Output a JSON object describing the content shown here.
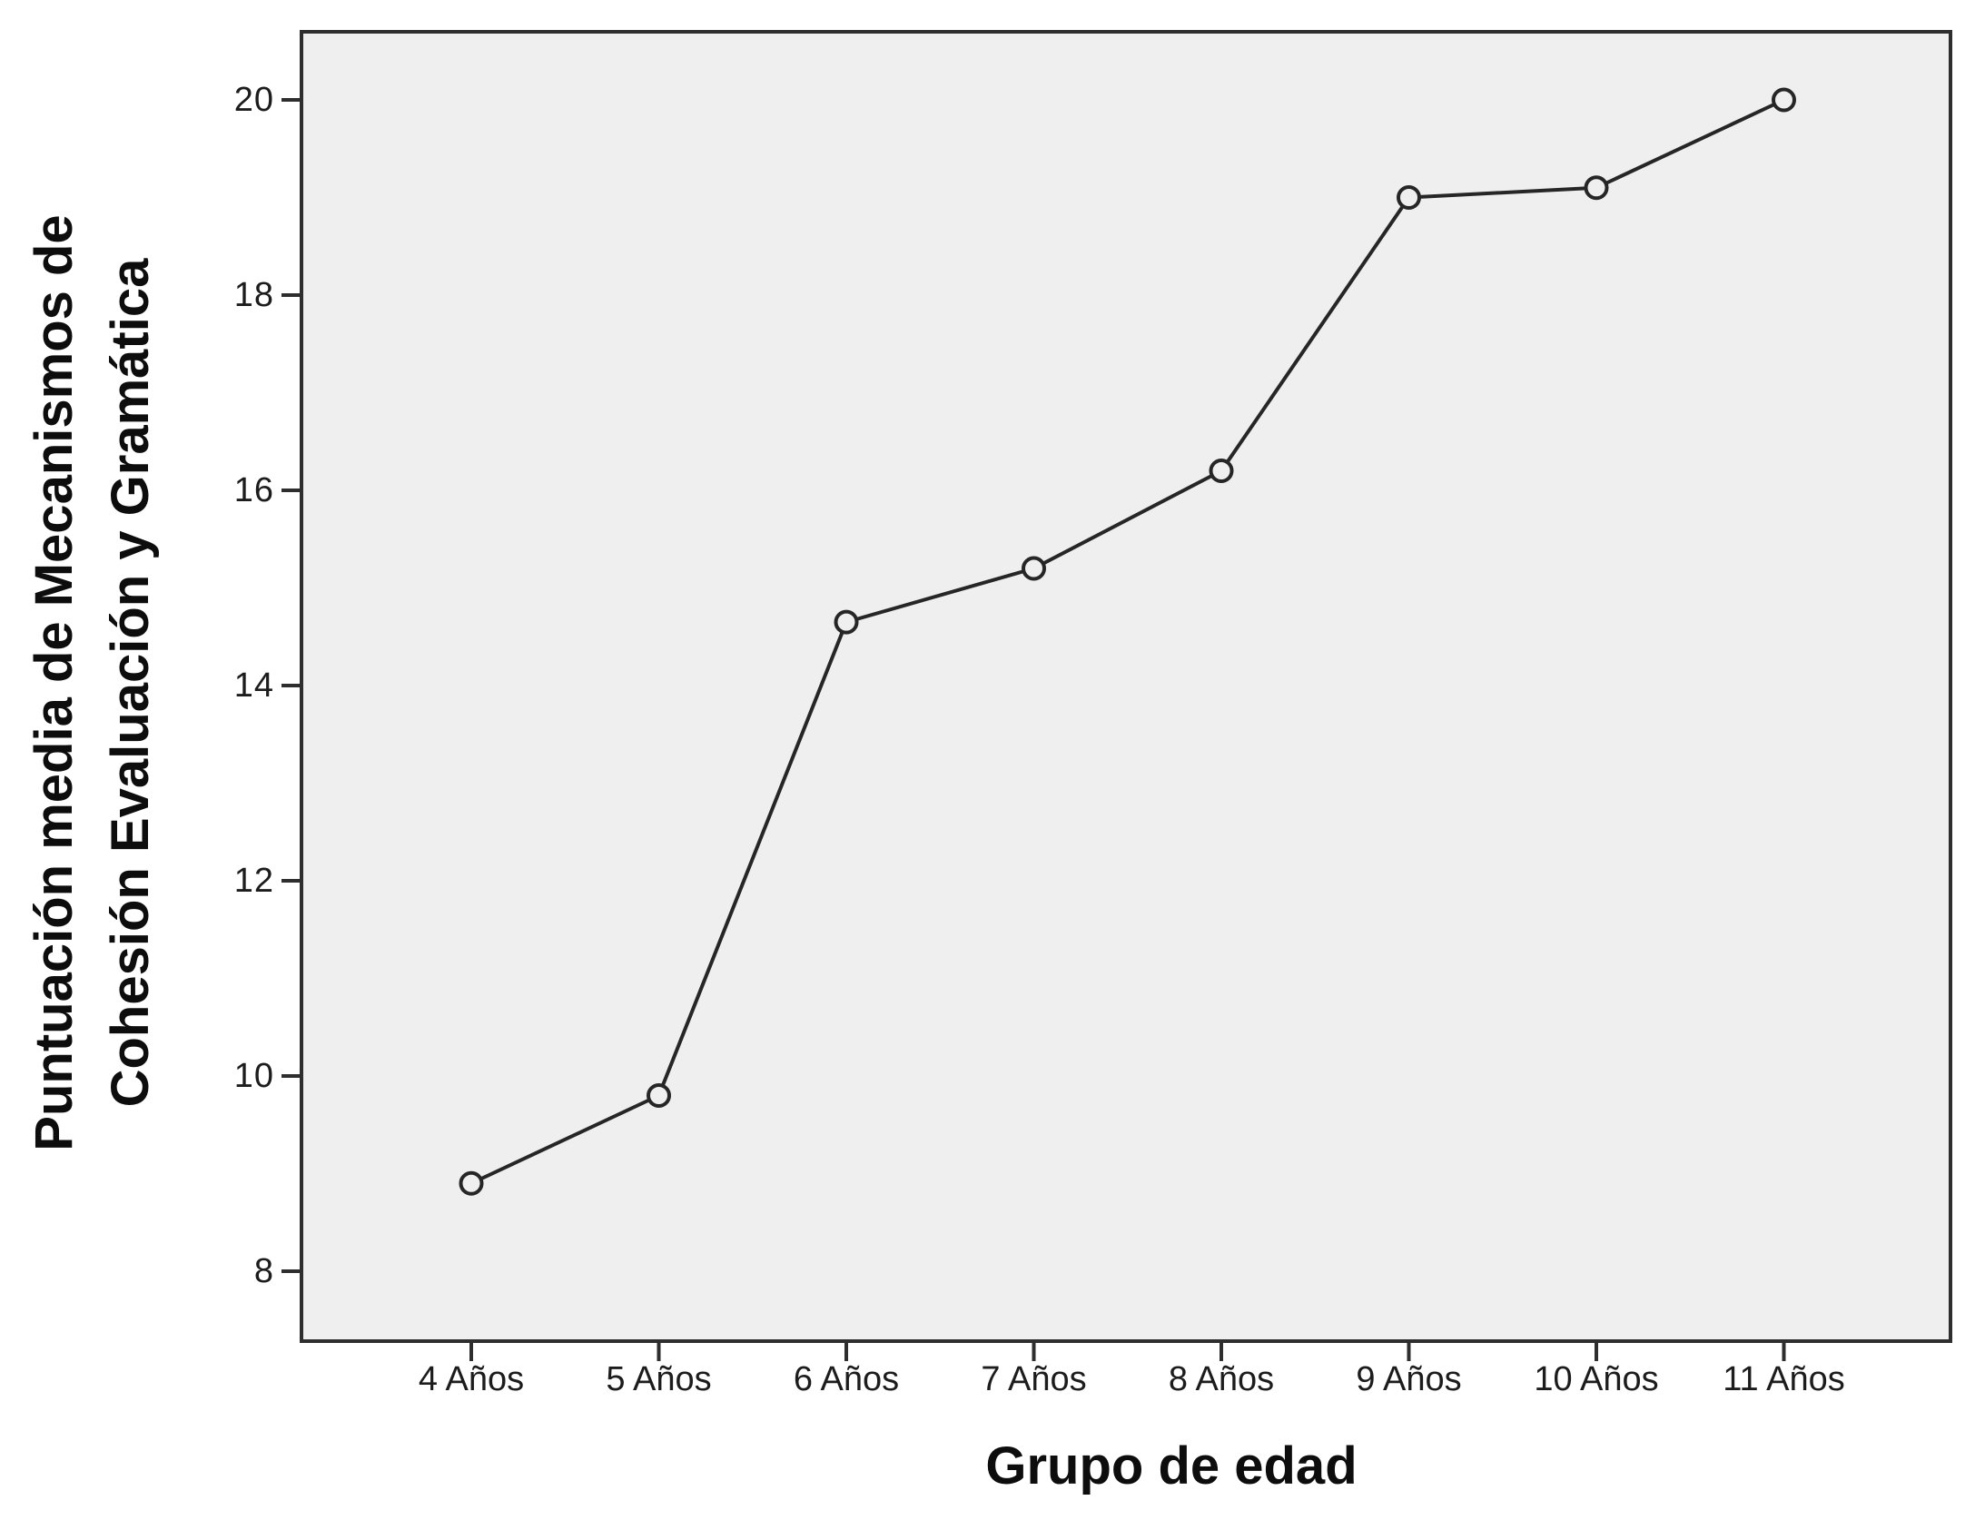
{
  "chart_data": {
    "type": "line",
    "title": "",
    "xlabel": "Grupo de edad",
    "ylabel": "Puntuación media de Mecanismos de Cohesión Evaluación y Gramática",
    "ylabel_lines": [
      "Puntuación media de Mecanismos de",
      "Cohesión Evaluación y Gramática"
    ],
    "categories": [
      "4 Años",
      "5 Años",
      "6 Años",
      "7 Años",
      "8 Años",
      "9 Años",
      "10 Años",
      "11 Años"
    ],
    "values": [
      8.9,
      9.8,
      14.65,
      15.2,
      16.2,
      19.0,
      19.1,
      20.0
    ],
    "yticks": [
      20,
      18,
      16,
      14,
      12,
      10,
      8
    ],
    "ylim": [
      7.3,
      20.7
    ],
    "grid": false,
    "legend": false,
    "marker": "open-circle",
    "colors": {
      "line": "#262626",
      "plot_bg": "#efefef",
      "frame": "#2e2e2e",
      "text": "#1c1c1c"
    }
  }
}
